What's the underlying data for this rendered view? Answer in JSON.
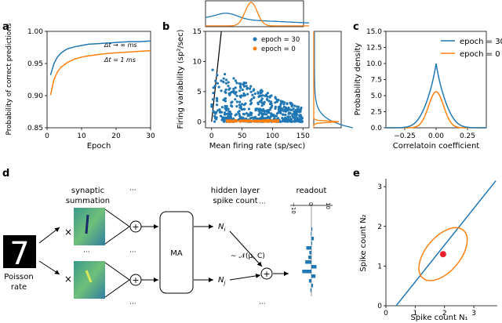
{
  "colors": {
    "blue": "#1f77b4",
    "orange": "#ff7f0e",
    "pixel_bg": "#2b8c8c"
  },
  "panels": {
    "a": {
      "label": "a",
      "chart_data": {
        "type": "line",
        "xlabel": "Epoch",
        "ylabel": "Probability of correct predictions",
        "xlim": [
          0,
          30
        ],
        "ylim": [
          0.85,
          1.0
        ],
        "xticks": [
          "0",
          "10",
          "20",
          "30"
        ],
        "yticks": [
          "0.85",
          "0.90",
          "0.95",
          "1.00"
        ],
        "series": [
          {
            "name": "Δt → ∞ ms",
            "x": [
              1,
              2,
              3,
              4,
              5,
              6,
              8,
              10,
              12,
              15,
              18,
              21,
              24,
              27,
              30
            ],
            "values": [
              0.932,
              0.95,
              0.96,
              0.966,
              0.97,
              0.973,
              0.976,
              0.978,
              0.98,
              0.981,
              0.982,
              0.983,
              0.984,
              0.984,
              0.985
            ]
          },
          {
            "name": "Δt = 1 ms",
            "x": [
              1,
              2,
              3,
              4,
              5,
              6,
              8,
              10,
              12,
              15,
              18,
              21,
              24,
              27,
              30
            ],
            "values": [
              0.901,
              0.925,
              0.937,
              0.944,
              0.948,
              0.952,
              0.957,
              0.96,
              0.962,
              0.964,
              0.966,
              0.967,
              0.968,
              0.969,
              0.97
            ]
          }
        ],
        "annotations": [
          "Δt → ∞ ms",
          "Δt = 1 ms"
        ]
      }
    },
    "b": {
      "label": "b",
      "chart_data": {
        "type": "scatter",
        "xlabel": "Mean firing rate (sp/sec)",
        "ylabel": "Firing variability (sp²/sec)",
        "xlim": [
          -10,
          160
        ],
        "ylim": [
          -1,
          15
        ],
        "xticks": [
          "0",
          "50",
          "100",
          "150"
        ],
        "yticks": [
          "0",
          "5",
          "10",
          "15"
        ],
        "legend": [
          "epoch = 30",
          "epoch = 0"
        ],
        "series": [
          {
            "name": "epoch = 30",
            "description_range": {
              "x": [
                0,
                150
              ],
              "y": [
                0,
                9
              ]
            }
          },
          {
            "name": "epoch = 0",
            "description_range": {
              "x": [
                20,
                110
              ],
              "y": [
                0,
                0.3
              ]
            }
          }
        ]
      }
    },
    "c": {
      "label": "c",
      "chart_data": {
        "type": "line",
        "xlabel": "Correlatoin coefficient",
        "ylabel": "Probability density",
        "xlim": [
          -0.4,
          0.4
        ],
        "ylim": [
          0,
          15
        ],
        "xticks": [
          "−0.25",
          "0.00",
          "0.25"
        ],
        "yticks": [
          "0.0",
          "2.5",
          "5.0",
          "7.5",
          "10.0",
          "12.5",
          "15.0"
        ],
        "legend": [
          "epoch = 30",
          "epoch = 0"
        ],
        "series": [
          {
            "name": "epoch = 30",
            "peak": 10.0
          },
          {
            "name": "epoch = 0",
            "peak": 5.6
          }
        ]
      }
    },
    "d": {
      "label": "d",
      "input_label_1": "Poisson",
      "input_label_2": "rate",
      "synaptic_1": "synaptic",
      "synaptic_2": "summation",
      "hidden_1": "hidden layer",
      "hidden_2": "spike count",
      "readout": "readout",
      "ma": "MA",
      "ni": "N",
      "ni_sub": "i",
      "nj": "N",
      "nj_sub": "j",
      "normal": "∼ 𝒩(μ, C)",
      "times": "×",
      "plus": "+",
      "ellipsis": "···",
      "vdots": "⋮",
      "readout_ticks": [
        "−10",
        "0",
        "10"
      ],
      "digit": "7"
    },
    "e": {
      "label": "e",
      "chart_data": {
        "type": "scatter",
        "xlabel": "Spike count N₁",
        "ylabel": "Spike count N₂",
        "xlim": [
          0,
          3.8
        ],
        "ylim": [
          0,
          3.2
        ],
        "xticks": [
          "0",
          "1",
          "2",
          "3"
        ],
        "yticks": [
          "0",
          "1",
          "2",
          "3"
        ],
        "point": [
          1.95,
          1.3
        ]
      }
    }
  }
}
